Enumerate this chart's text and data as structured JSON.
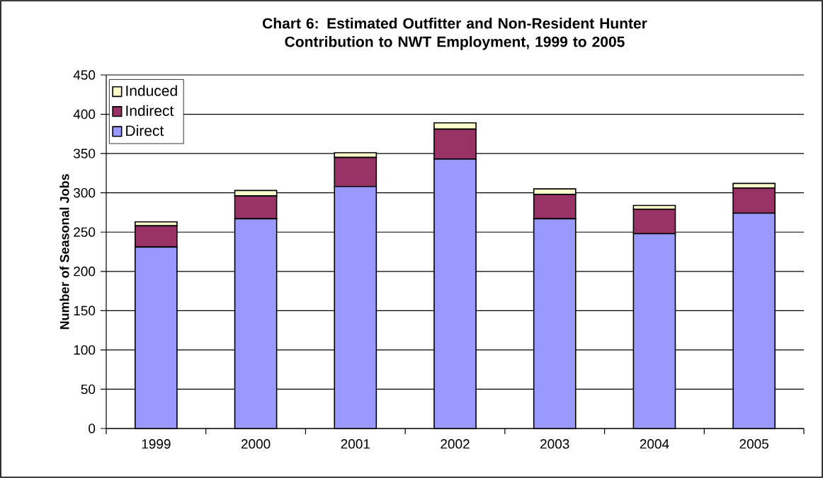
{
  "chart_data": {
    "type": "bar",
    "title": "Chart 6: Estimated Outfitter and Non-Resident Hunter Contribution to NWT Employment, 1999 to 2005",
    "ylabel": "Number of Seasonal Jobs",
    "categories": [
      "1999",
      "2000",
      "2001",
      "2002",
      "2003",
      "2004",
      "2005"
    ],
    "series": [
      {
        "name": "Direct",
        "color": "#9999ff",
        "values": [
          231,
          267,
          308,
          343,
          267,
          248,
          274
        ]
      },
      {
        "name": "Indirect",
        "color": "#993366",
        "values": [
          27,
          29,
          37,
          38,
          31,
          31,
          32
        ]
      },
      {
        "name": "Induced",
        "color": "#ffffcc",
        "values": [
          5,
          7,
          6,
          8,
          7,
          5,
          6
        ]
      }
    ],
    "stacked": true,
    "ylim": [
      0,
      450
    ],
    "yticks": [
      0,
      50,
      100,
      150,
      200,
      250,
      300,
      350,
      400,
      450
    ],
    "grid": "y",
    "legend": "top left"
  }
}
